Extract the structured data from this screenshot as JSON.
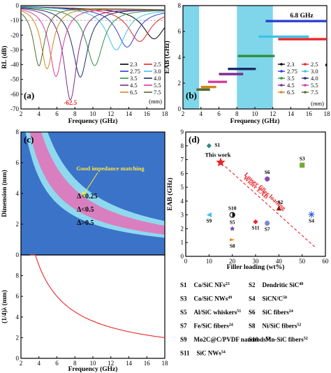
{
  "chart_data": [
    {
      "panel": "(a)",
      "type": "line",
      "xlabel": "Frequency (GHz)",
      "ylabel": "RL (dB)",
      "xlim": [
        2,
        18
      ],
      "ylim": [
        -70,
        0
      ],
      "xticks": [
        "2",
        "4",
        "6",
        "8",
        "10",
        "12",
        "14",
        "16",
        "18"
      ],
      "yticks": [
        "0",
        "-10",
        "-20",
        "-30",
        "-40",
        "-50",
        "-60",
        "-70"
      ],
      "legend_unit": "(mm)",
      "legend_position": "bottom-right",
      "annotation": "-62.5",
      "reference_line_y": -10,
      "series": [
        {
          "name": "2.3",
          "color": "#000000",
          "f0": 16.8,
          "depth": -20,
          "width": 2.2
        },
        {
          "name": "2.5",
          "color": "#e8262a",
          "f0": 15.2,
          "depth": -22,
          "width": 2.2
        },
        {
          "name": "2.75",
          "color": "#2b3fcf",
          "f0": 13.8,
          "depth": -26,
          "width": 2.0
        },
        {
          "name": "3.0",
          "color": "#3cc3e8",
          "f0": 12.6,
          "depth": -28,
          "width": 1.9
        },
        {
          "name": "3.5",
          "color": "#2f8f3f",
          "f0": 10.2,
          "depth": -39,
          "width": 1.7
        },
        {
          "name": "4.0",
          "color": "#1a2b6b",
          "f0": 8.6,
          "depth": -47,
          "width": 1.5
        },
        {
          "name": "4.5",
          "color": "#7a2a8a",
          "f0": 7.5,
          "depth": -62.5,
          "width": 1.3
        },
        {
          "name": "5.5",
          "color": "#d43c9c",
          "f0": 5.9,
          "depth": -47,
          "width": 1.3
        },
        {
          "name": "6.5",
          "color": "#cc8a1a",
          "f0": 4.9,
          "depth": -42,
          "width": 1.2
        },
        {
          "name": "7.5",
          "color": "#556b2f",
          "f0": 4.0,
          "depth": -40,
          "width": 1.1
        }
      ]
    },
    {
      "panel": "(b)",
      "type": "bar",
      "xlabel": "Frequency (GHz)",
      "ylabel": "EAB (GHz)",
      "xlim": [
        2,
        18
      ],
      "ylim": [
        0,
        8
      ],
      "xticks": [
        "2",
        "4",
        "6",
        "8",
        "10",
        "12",
        "14",
        "16",
        "18"
      ],
      "yticks": [
        "0",
        "2",
        "4",
        "6",
        "8"
      ],
      "annotation": "6.8 GHz",
      "legend_unit": "(mm)",
      "legend_position": "bottom-right",
      "shaded_bands": [
        [
          2,
          3.8
        ],
        [
          8,
          12
        ]
      ],
      "ranges": [
        {
          "name": "2.3",
          "color": "#000000",
          "start": 14.6,
          "end": 18,
          "eab": 3.4
        },
        {
          "name": "2.5",
          "color": "#e8262a",
          "start": 12.6,
          "end": 18,
          "eab": 5.4
        },
        {
          "name": "2.75",
          "color": "#2b3fcf",
          "start": 11.2,
          "end": 18,
          "eab": 6.8
        },
        {
          "name": "3.0",
          "color": "#3cc3e8",
          "start": 10.4,
          "end": 16.0,
          "eab": 5.6
        },
        {
          "name": "3.5",
          "color": "#2f8f3f",
          "start": 8.1,
          "end": 12.2,
          "eab": 4.1
        },
        {
          "name": "4.0",
          "color": "#1a2b6b",
          "start": 7.0,
          "end": 10.1,
          "eab": 3.1
        },
        {
          "name": "4.5",
          "color": "#7a2a8a",
          "start": 6.0,
          "end": 8.7,
          "eab": 2.7
        },
        {
          "name": "5.5",
          "color": "#d43c9c",
          "start": 4.8,
          "end": 6.9,
          "eab": 2.1
        },
        {
          "name": "6.5",
          "color": "#cc8a1a",
          "start": 4.0,
          "end": 5.7,
          "eab": 1.7
        },
        {
          "name": "7.5",
          "color": "#556b2f",
          "start": 3.5,
          "end": 5.0,
          "eab": 1.5
        }
      ]
    },
    {
      "panel": "(c)",
      "type": "heatmap",
      "xlabel": "Frequency (GHz)",
      "ylabel_top": "Dimension (mm)",
      "ylabel_bottom": "(1/4)λ (mm)",
      "xlim": [
        2,
        18
      ],
      "ylim_top": [
        0,
        8
      ],
      "ylim_bottom": [
        0,
        10
      ],
      "xticks": [
        "2",
        "4",
        "6",
        "8",
        "10",
        "12",
        "14",
        "16",
        "18"
      ],
      "yticks_top": [
        "0",
        "2",
        "4",
        "6",
        "8"
      ],
      "yticks_bottom": [
        "0",
        "2",
        "4",
        "6",
        "8"
      ],
      "annotation": "Good impedance matching",
      "regions": [
        {
          "name": "Δ<0.25",
          "color": "#d97fc0"
        },
        {
          "name": "Δ<0.5",
          "color": "#8fd9ef"
        },
        {
          "name": "Δ>0.5",
          "color": "#3b73c9"
        }
      ],
      "background_color": "#3b73c9"
    },
    {
      "panel": "(d)",
      "type": "scatter",
      "xlabel": "Filler loading (wt%)",
      "ylabel": "EAB (GHz)",
      "xlim": [
        0,
        60
      ],
      "ylim": [
        0,
        9
      ],
      "xticks": [
        "0",
        "10",
        "20",
        "30",
        "40",
        "50",
        "60"
      ],
      "yticks": [
        "0",
        "1",
        "2",
        "3",
        "4",
        "5",
        "6",
        "7",
        "8",
        "9"
      ],
      "trend_text_1": "Wider EAB",
      "trend_text_2": "Lower filler loading",
      "this_work_label": "This work",
      "points": [
        {
          "name": "This work",
          "x": 15,
          "y": 6.8,
          "color": "#e8262a",
          "marker": "star"
        },
        {
          "name": "S1",
          "x": 10,
          "y": 8.0,
          "color": "#2a8a7a",
          "marker": "diamond"
        },
        {
          "name": "S2",
          "x": 40,
          "y": 3.5,
          "color": "#8a1a1a",
          "marker": "triangle"
        },
        {
          "name": "S3",
          "x": 50,
          "y": 6.6,
          "color": "#7aa83a",
          "marker": "square"
        },
        {
          "name": "S4",
          "x": 54,
          "y": 3.0,
          "color": "#2b5fcf",
          "marker": "asterisk"
        },
        {
          "name": "S5",
          "x": 20,
          "y": 2.0,
          "color": "#6a4aa8",
          "marker": "star"
        },
        {
          "name": "S6",
          "x": 35,
          "y": 5.6,
          "color": "#8a4aa8",
          "marker": "circle"
        },
        {
          "name": "S7",
          "x": 35,
          "y": 2.4,
          "color": "#7a8ac8",
          "marker": "circle"
        },
        {
          "name": "S8",
          "x": 20,
          "y": 1.2,
          "color": "#e88a1a",
          "marker": "tri"
        },
        {
          "name": "S9",
          "x": 10,
          "y": 3.0,
          "color": "#3cc3e8",
          "marker": "triangle-left"
        },
        {
          "name": "S10",
          "x": 20,
          "y": 3.0,
          "color": "#000000",
          "marker": "half-circle"
        },
        {
          "name": "S11",
          "x": 30,
          "y": 2.5,
          "color": "#e8262a",
          "marker": "diamond"
        }
      ],
      "references": [
        [
          "S1",
          "Co/SiC NFs",
          "23"
        ],
        [
          "S2",
          "Dendritic SiC",
          "48"
        ],
        [
          "S3",
          "Co/SiC NWs",
          "49"
        ],
        [
          "S4",
          "SiCN/C",
          "50"
        ],
        [
          "S5",
          "Al/SiC whiskers",
          "51"
        ],
        [
          "S6",
          "SiC fibers",
          "24"
        ],
        [
          "S7",
          "Fe/SiC fibers",
          "24"
        ],
        [
          "S8",
          "Ni/SiC fibers",
          "52"
        ],
        [
          "S9",
          "Mo2C@C/PVDF nanorods",
          "53"
        ],
        [
          "S10",
          "Mn-SiC fibers",
          "52"
        ],
        [
          "S11",
          "SiC NWs",
          "54"
        ]
      ]
    }
  ]
}
